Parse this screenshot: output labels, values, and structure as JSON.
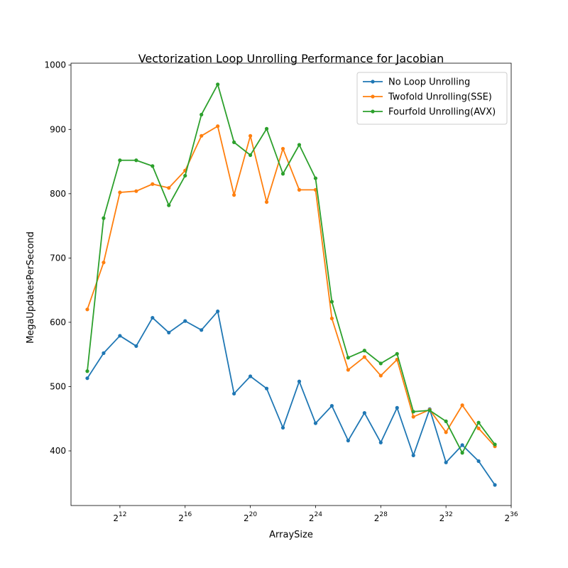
{
  "chart_data": {
    "type": "line",
    "title": "Vectorization Loop Unrolling Performance for Jacobian",
    "xlabel": "ArraySize",
    "ylabel": "MegaUpdatesPerSecond",
    "x_scale": "log2",
    "xlim": [
      512,
      68719476736
    ],
    "ylim": [
      315,
      1003
    ],
    "grid": false,
    "legend_position": "top-right",
    "x": [
      1024,
      2048,
      4096,
      8192,
      16384,
      32768,
      65536,
      131072,
      262144,
      524288,
      1048576,
      2097152,
      4194304,
      8388608,
      16777216,
      33554432,
      67108864,
      134217728,
      268435456,
      536870912,
      1073741824,
      2147483648,
      4294967296,
      8589934592,
      17179869184,
      34359738368
    ],
    "x_ticks": [
      {
        "value": 4096,
        "base": "2",
        "exp": "12"
      },
      {
        "value": 65536,
        "base": "2",
        "exp": "16"
      },
      {
        "value": 1048576,
        "base": "2",
        "exp": "20"
      },
      {
        "value": 16777216,
        "base": "2",
        "exp": "24"
      },
      {
        "value": 268435456,
        "base": "2",
        "exp": "28"
      },
      {
        "value": 4294967296,
        "base": "2",
        "exp": "32"
      },
      {
        "value": 68719476736,
        "base": "2",
        "exp": "36"
      }
    ],
    "y_ticks": [
      {
        "value": 400,
        "label": "400"
      },
      {
        "value": 500,
        "label": "500"
      },
      {
        "value": 600,
        "label": "600"
      },
      {
        "value": 700,
        "label": "700"
      },
      {
        "value": 800,
        "label": "800"
      },
      {
        "value": 900,
        "label": "900"
      },
      {
        "value": 1000,
        "label": "1000"
      }
    ],
    "series": [
      {
        "name": "No Loop Unrolling",
        "color": "#1f77b4",
        "values": [
          513,
          552,
          579,
          563,
          607,
          584,
          602,
          588,
          617,
          489,
          516,
          497,
          436,
          508,
          443,
          470,
          416,
          459,
          413,
          467,
          393,
          465,
          382,
          409,
          384,
          347
        ]
      },
      {
        "name": "Twofold Unrolling(SSE)",
        "color": "#ff7f0e",
        "values": [
          620,
          693,
          802,
          804,
          815,
          809,
          836,
          890,
          905,
          798,
          890,
          787,
          870,
          806,
          806,
          606,
          526,
          546,
          517,
          542,
          453,
          464,
          429,
          471,
          435,
          407
        ]
      },
      {
        "name": "Fourfold Unrolling(AVX)",
        "color": "#2ca02c",
        "values": [
          524,
          762,
          852,
          852,
          843,
          782,
          828,
          923,
          970,
          880,
          860,
          901,
          831,
          876,
          824,
          632,
          545,
          556,
          536,
          551,
          461,
          463,
          446,
          397,
          444,
          410
        ]
      }
    ]
  }
}
